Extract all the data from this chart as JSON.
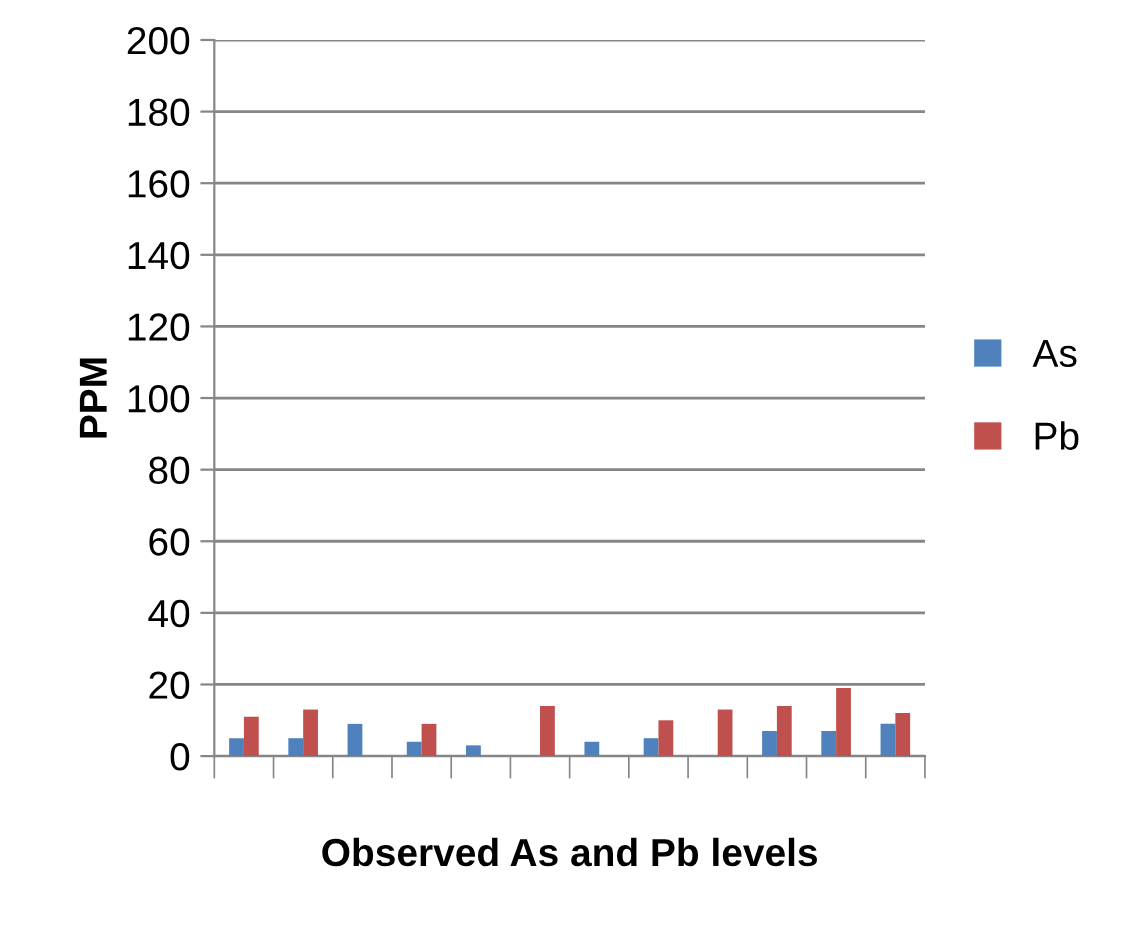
{
  "chart_data": {
    "type": "bar",
    "xlabel": "Observed As and Pb levels",
    "ylabel": "PPM",
    "categories": [
      null,
      null,
      null,
      null,
      null,
      null,
      null,
      null,
      null,
      null,
      null,
      null
    ],
    "series": [
      {
        "name": "As",
        "color": "#4f81bd",
        "values": [
          5,
          5,
          9,
          4,
          3,
          0,
          4,
          5,
          0,
          7,
          7,
          9
        ]
      },
      {
        "name": "Pb",
        "color": "#c0504d",
        "values": [
          11,
          13,
          0,
          9,
          0,
          14,
          0,
          10,
          13,
          14,
          19,
          12
        ]
      }
    ],
    "ylim": [
      0,
      200
    ],
    "yticks": [
      0,
      20,
      40,
      60,
      80,
      100,
      120,
      140,
      160,
      180,
      200
    ],
    "grid": "y",
    "legend": "right"
  }
}
